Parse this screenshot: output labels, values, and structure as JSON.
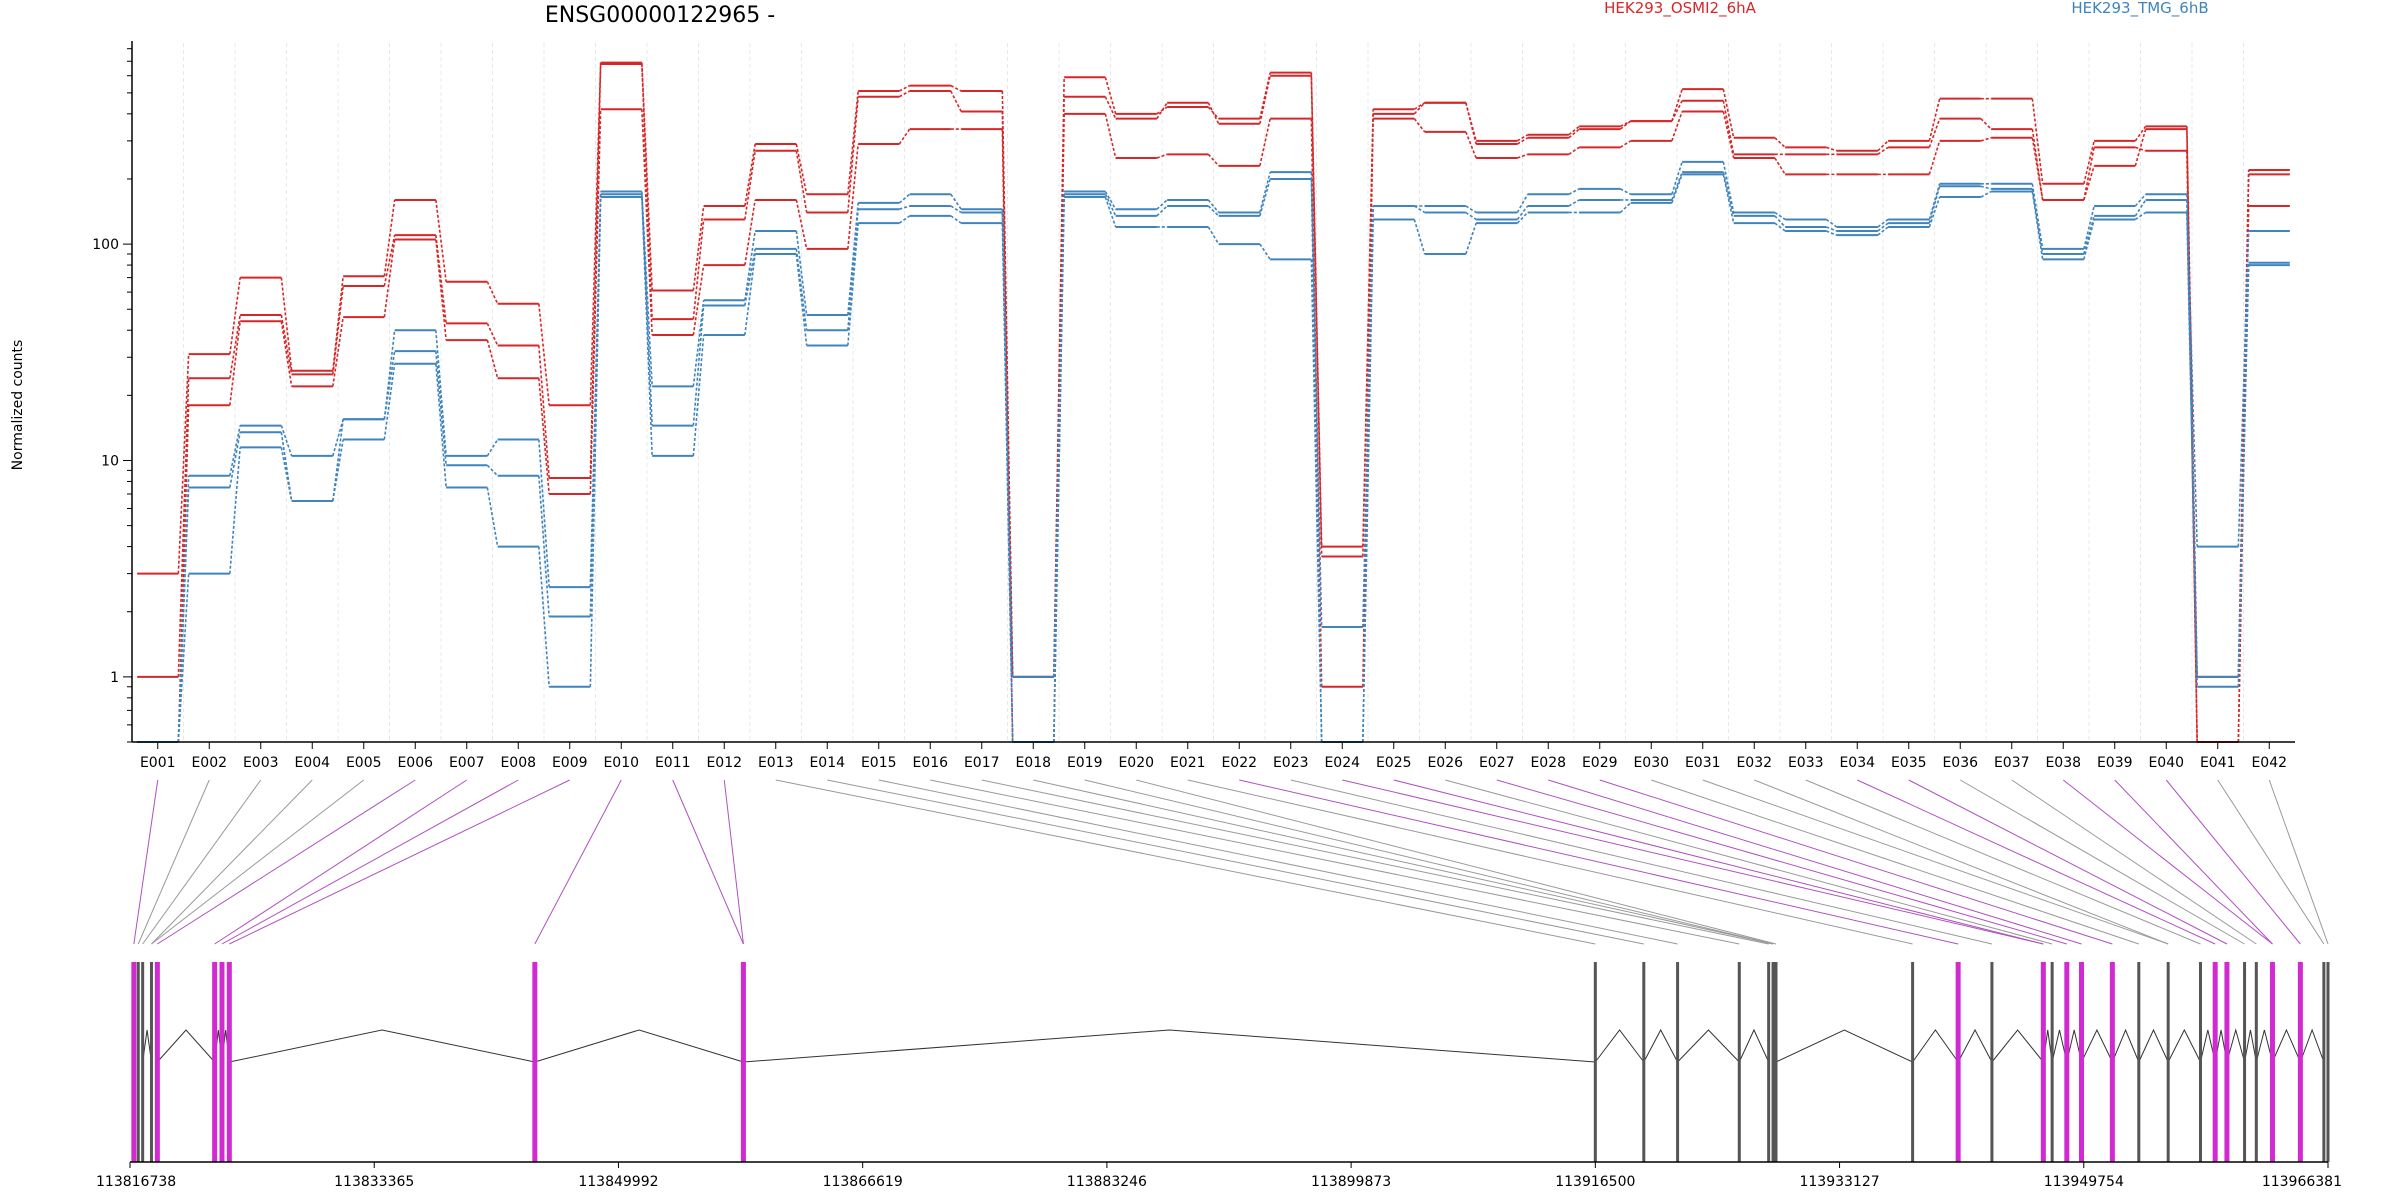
{
  "chart_data": {
    "type": "line",
    "title": "ENSG00000122965 -",
    "xlabel": "",
    "ylabel": "Normalized counts",
    "yscale": "log",
    "ylim": [
      0.5,
      850
    ],
    "yticks": [
      1,
      10,
      100
    ],
    "grid": "vertical",
    "legend_placement": "top-right",
    "categories": [
      "E001",
      "E002",
      "E003",
      "E004",
      "E005",
      "E006",
      "E007",
      "E008",
      "E009",
      "E010",
      "E011",
      "E012",
      "E013",
      "E014",
      "E015",
      "E016",
      "E017",
      "E018",
      "E019",
      "E020",
      "E021",
      "E022",
      "E023",
      "E024",
      "E025",
      "E026",
      "E027",
      "E028",
      "E029",
      "E030",
      "E031",
      "E032",
      "E033",
      "E034",
      "E035",
      "E036",
      "E037",
      "E038",
      "E039",
      "E040",
      "E041",
      "E042"
    ],
    "legend": [
      {
        "label": "HEK293_OSMI2_6hA",
        "color": "#d62728"
      },
      {
        "label": "HEK293_TMG_6hB",
        "color": "#3f84bd"
      }
    ],
    "series": [
      {
        "group": 0,
        "values": [
          3.0,
          31,
          70,
          26,
          71,
          160,
          67,
          53,
          18,
          690,
          61,
          150,
          290,
          170,
          510,
          540,
          510,
          1.0,
          590,
          400,
          430,
          380,
          620,
          4.0,
          400,
          450,
          300,
          320,
          350,
          370,
          520,
          310,
          280,
          270,
          300,
          470,
          470,
          190,
          300,
          350,
          1.0,
          220
        ]
      },
      {
        "group": 0,
        "values": [
          1.0,
          24,
          47,
          25,
          64,
          110,
          43,
          34,
          8.3,
          680,
          45,
          130,
          270,
          140,
          480,
          510,
          410,
          1.0,
          480,
          380,
          450,
          360,
          600,
          3.6,
          420,
          450,
          290,
          310,
          340,
          370,
          460,
          260,
          260,
          260,
          280,
          380,
          340,
          160,
          230,
          340,
          0.5,
          210
        ]
      },
      {
        "group": 0,
        "values": [
          0.5,
          18,
          44,
          22,
          46,
          105,
          36,
          24,
          7.0,
          420,
          38,
          80,
          160,
          95,
          290,
          340,
          340,
          0.5,
          400,
          250,
          260,
          230,
          380,
          0.9,
          380,
          330,
          250,
          260,
          280,
          300,
          410,
          250,
          210,
          210,
          210,
          300,
          310,
          160,
          280,
          270,
          0.5,
          150
        ]
      },
      {
        "group": 1,
        "values": [
          0.5,
          8.5,
          14.5,
          10.5,
          15.5,
          40,
          10.5,
          12.5,
          2.6,
          175,
          22,
          55,
          115,
          47,
          155,
          170,
          145,
          1.0,
          175,
          145,
          160,
          140,
          215,
          1.7,
          150,
          150,
          140,
          170,
          180,
          170,
          240,
          140,
          130,
          120,
          130,
          190,
          190,
          95,
          150,
          170,
          4.0,
          115
        ]
      },
      {
        "group": 1,
        "values": [
          0.5,
          7.5,
          13.5,
          6.5,
          15.5,
          32,
          9.5,
          8.5,
          1.9,
          170,
          14.5,
          52,
          95,
          40,
          145,
          150,
          140,
          0.5,
          170,
          135,
          150,
          135,
          200,
          0.5,
          150,
          140,
          130,
          150,
          160,
          160,
          215,
          135,
          120,
          115,
          125,
          185,
          180,
          90,
          135,
          160,
          1.0,
          82
        ]
      },
      {
        "group": 1,
        "values": [
          0.5,
          3.0,
          11.5,
          6.5,
          12.5,
          28,
          7.5,
          4.0,
          0.9,
          165,
          10.5,
          38,
          90,
          34,
          125,
          135,
          125,
          0.5,
          165,
          120,
          120,
          100,
          85,
          0.5,
          130,
          90,
          125,
          140,
          140,
          155,
          210,
          125,
          115,
          110,
          120,
          165,
          175,
          85,
          130,
          140,
          0.9,
          80
        ]
      }
    ],
    "genomic_axis": {
      "tick_labels": [
        "113816738",
        "113833365",
        "113849992",
        "113866619",
        "113883246",
        "113899873",
        "113916500",
        "113933127",
        "113949754",
        "113966381"
      ],
      "range": [
        113816738,
        113966381
      ]
    },
    "exon_map": {
      "coords": [
        113817000,
        113817300,
        113817600,
        113818200,
        113818600,
        113822500,
        113823000,
        113823500,
        113844300,
        113858500,
        113916500,
        113919800,
        113922100,
        113926300,
        113928300,
        113928600,
        113928800,
        113938100,
        113941200,
        113943500,
        113947000,
        113947600,
        113948600,
        113949600,
        113951700,
        113953500,
        113955500,
        113957700,
        113958700,
        113959500,
        113960700,
        113961500,
        113962600,
        113964500,
        113966100,
        113966381
      ],
      "highlighted": [
        true,
        false,
        false,
        false,
        true,
        true,
        true,
        true,
        true,
        true,
        false,
        false,
        false,
        false,
        false,
        false,
        false,
        false,
        true,
        false,
        true,
        false,
        true,
        true,
        true,
        false,
        false,
        false,
        true,
        true,
        false,
        false,
        true,
        true,
        false,
        false
      ],
      "highlight_color": "#d02ad0"
    }
  }
}
